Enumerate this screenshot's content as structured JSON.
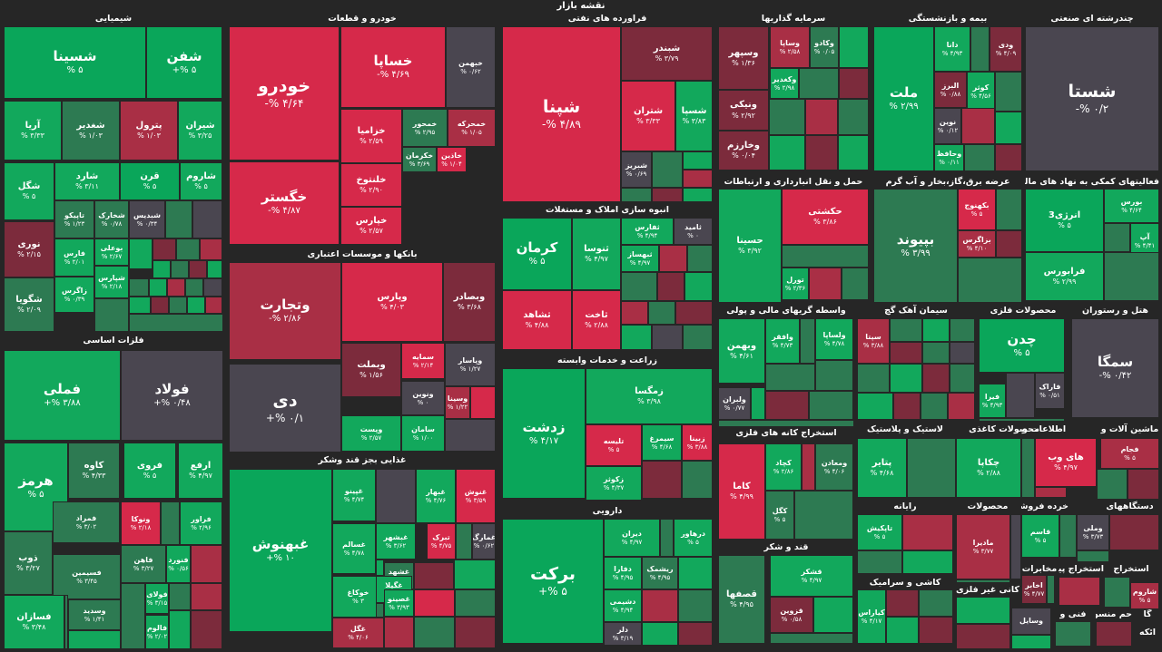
{
  "page_title": "نقشه بازار",
  "sectors": {
    "petrochem": "شیمیایی",
    "auto": "خودرو و قطعات",
    "refinery": "فراورده های نفتی",
    "invest": "سرمایه گذاریها",
    "insurance": "بیمه و بازنشستگی",
    "multi": "چندرشته ای صنعتی",
    "metals": "فلزات اساسی",
    "banks": "بانکها و موسسات اعتباری",
    "construction": "انبوه سازی املاک و مستغلات",
    "transport": "حمل و نقل انبارداری و ارتباطات",
    "utility": "عرضه برق،گاز،بخار و آب گرم",
    "finaux": "فعالیتهای کمکی به نهاد های مالی",
    "agri": "زراعت و خدمات وابسته",
    "fininter": "واسطه گریهای مالی و پولی",
    "cement": "سیمان آهک گچ",
    "mineral": "محصولات فلزی",
    "hotel": "هتل و رستوران",
    "food": "غذایی بجز قند وشکر",
    "ore": "استخراج کانه های فلزی",
    "rubber": "لاستیک و پلاستیک",
    "paper": "محصولات کاغذی",
    "it": "اطلاعات و",
    "machine": "ماشین آلات و",
    "pharma": "دارویی",
    "sugar": "قند و شکر",
    "computer": "رایانه",
    "products": "محصولات",
    "retail": "خرده فروشی",
    "appliance": "دستگاههای",
    "tile": "کاشی و سرامیک",
    "nonmetal": "کانی غیر فلزی",
    "telecom": "مخابرات",
    "contract": "استخراج پیمانکاری",
    "other_mine": "استخراج",
    "tech": "فنی و",
    "mines": "حم منسو",
    "misc1": "ائکه",
    "misc2": "گا"
  },
  "tiles": [
    {
      "s": "شسینا",
      "v": "۵ %"
    },
    {
      "s": "شفن",
      "v": "۵ %+"
    },
    {
      "s": "آریا",
      "v": "۳/۳۳ %"
    },
    {
      "s": "شغدیر",
      "v": "۱/۰۳ %"
    },
    {
      "s": "پترول",
      "v": "۱/۰۳ %"
    },
    {
      "s": "شیران",
      "v": "۳/۲۵ %"
    },
    {
      "s": "شگل",
      "v": "۵ %"
    },
    {
      "s": "شارد",
      "v": "۳/۱۱ %"
    },
    {
      "s": "قرن",
      "v": "۵ %"
    },
    {
      "s": "شاروم",
      "v": "۵ %"
    },
    {
      "s": "تاپیکو",
      "v": "۱/۲۳ %"
    },
    {
      "s": "شخارک",
      "v": "۰/۷۸ %"
    },
    {
      "s": "شبدیس",
      "v": "۰/۳۴ %"
    },
    {
      "s": "نوری",
      "v": "۲/۱۵ %"
    },
    {
      "s": "بوعلی",
      "v": "۲/۶۷ %"
    },
    {
      "s": "فارس",
      "v": "۲/۰۱ %"
    },
    {
      "s": "شپارس",
      "v": "۲/۱۸ %"
    },
    {
      "s": "شگویا",
      "v": "۲/۰۹ %"
    },
    {
      "s": "زاگرس",
      "v": "۰/۳۹ %"
    },
    {
      "s": "خودرو",
      "v": "۴/۶۴ %-"
    },
    {
      "s": "خساپا",
      "v": "۴/۶۹ %-"
    },
    {
      "s": "خبهمن",
      "v": "۰/۶۲ %"
    },
    {
      "s": "خگستر",
      "v": "۴/۸۷ %-"
    },
    {
      "s": "خزامیا",
      "v": "۲/۵۹ %"
    },
    {
      "s": "خمحور",
      "v": "۲/۹۵ %"
    },
    {
      "s": "خمحرکه",
      "v": "۱/۰۵ %"
    },
    {
      "s": "خکرمان",
      "v": "۳/۶۹ %"
    },
    {
      "s": "خاذین",
      "v": "۱/۰۴ %"
    },
    {
      "s": "خلنتوخ",
      "v": "۲/۹۰ %"
    },
    {
      "s": "خپارس",
      "v": "۲/۵۷ %"
    },
    {
      "s": "شپنا",
      "v": "۴/۸۹ %-"
    },
    {
      "s": "شبندر",
      "v": "۳/۷۹ %"
    },
    {
      "s": "شتران",
      "v": "۳/۳۳ %"
    },
    {
      "s": "شسپا",
      "v": "۳/۸۳ %"
    },
    {
      "s": "شبریز",
      "v": "۰/۶۹ %"
    },
    {
      "s": "وسپهر",
      "v": "۱/۳۶ %"
    },
    {
      "s": "وساپا",
      "v": "۲/۵۸ %"
    },
    {
      "s": "وکادو",
      "v": "۰/۰۵ %"
    },
    {
      "s": "وکغدیر",
      "v": "۲/۹۸ %"
    },
    {
      "s": "ونیکی",
      "v": "۲/۹۲ %"
    },
    {
      "s": "وخارزم",
      "v": "۰/۰۴ %"
    },
    {
      "s": "ملت",
      "v": "۲/۹۹ %"
    },
    {
      "s": "دانا",
      "v": "۴/۹۳ %"
    },
    {
      "s": "ودی",
      "v": "۴/۰۹ %"
    },
    {
      "s": "البرز",
      "v": "۰/۸۸ %"
    },
    {
      "s": "کوثر",
      "v": "۴/۵۶ %"
    },
    {
      "s": "نوین",
      "v": "۰/۱۲ %"
    },
    {
      "s": "وحافظ",
      "v": "۰/۱۱ %"
    },
    {
      "s": "شستا",
      "v": "۰/۲ %-"
    },
    {
      "s": "فملی",
      "v": "۳/۸۸ %+"
    },
    {
      "s": "فولاد",
      "v": "۰/۴۸ %+"
    },
    {
      "s": "هرمز",
      "v": "۵ %"
    },
    {
      "s": "کاوه",
      "v": "۴/۳۳ %"
    },
    {
      "s": "فروی",
      "v": "۵ %"
    },
    {
      "s": "ارفع",
      "v": "۴/۹۷ %"
    },
    {
      "s": "فمراد",
      "v": "۳/۰۲ %"
    },
    {
      "s": "ونوکا",
      "v": "۲/۱۸ %"
    },
    {
      "s": "فراور",
      "v": "۲/۹۶ %"
    },
    {
      "s": "ذوب",
      "v": "۳/۲۷ %"
    },
    {
      "s": "فاهن",
      "v": "۳/۲۷ %"
    },
    {
      "s": "فنورد",
      "v": "۰/۵۶ %"
    },
    {
      "s": "فسیمین",
      "v": "۳/۴۵ %"
    },
    {
      "s": "فولای",
      "v": "۳/۱۵ %"
    },
    {
      "s": "فسازان",
      "v": "۳/۴۸ %"
    },
    {
      "s": "وسدید",
      "v": "۱/۴۱ %"
    },
    {
      "s": "فالوم",
      "v": "۲/۰۲ %"
    },
    {
      "s": "وتجارت",
      "v": "۲/۸۶ %-"
    },
    {
      "s": "وپارس",
      "v": "۴/۰۳ %"
    },
    {
      "s": "وبصادر",
      "v": "۳/۶۸ %"
    },
    {
      "s": "دی",
      "v": "۰/۱ %+"
    },
    {
      "s": "وبملت",
      "v": "۱/۵۶ %"
    },
    {
      "s": "سمایه",
      "v": "۲/۱۴ %"
    },
    {
      "s": "وپاسار",
      "v": "۱/۲۷ %"
    },
    {
      "s": "ونوین",
      "v": "۰ %"
    },
    {
      "s": "وسینا",
      "v": "۱/۲۲ %"
    },
    {
      "s": "وپست",
      "v": "۲/۵۷ %"
    },
    {
      "s": "سامان",
      "v": "۱/۰۰ %"
    },
    {
      "s": "کرمان",
      "v": "۵ %"
    },
    {
      "s": "ثنوسا",
      "v": "۴/۹۷ %"
    },
    {
      "s": "ثفارس",
      "v": "۴/۹۴ %"
    },
    {
      "s": "ثامید",
      "v": "۰ %"
    },
    {
      "s": "ثبهساز",
      "v": "۴/۹۷ %"
    },
    {
      "s": "ثشاهد",
      "v": "۴/۸۸ %"
    },
    {
      "s": "ثاخت",
      "v": "۲/۸۸ %"
    },
    {
      "s": "حسینا",
      "v": "۳/۹۲ %"
    },
    {
      "s": "حکشتی",
      "v": "۳/۸۶ %"
    },
    {
      "s": "تورل",
      "v": "۲/۳۶ %"
    },
    {
      "s": "بپیوند",
      "v": "۳/۹۹ %"
    },
    {
      "s": "بکهنوج",
      "v": "۵ %"
    },
    {
      "s": "بزاگرس",
      "v": "۴/۱۰ %"
    },
    {
      "s": "انرژی3",
      "v": "۵ %"
    },
    {
      "s": "بورس",
      "v": "۴/۶۴ %"
    },
    {
      "s": "آپ",
      "v": "۴/۴۱ %"
    },
    {
      "s": "فرابورس",
      "v": "۲/۹۹ %"
    },
    {
      "s": "زدشت",
      "v": "۴/۱۷ %"
    },
    {
      "s": "زمگسا",
      "v": "۳/۹۸ %"
    },
    {
      "s": "تلیسه",
      "v": "۵ %"
    },
    {
      "s": "سیمرغ",
      "v": "۴/۶۸ %"
    },
    {
      "s": "زبینا",
      "v": "۳/۸۸ %"
    },
    {
      "s": "زکوثر",
      "v": "۴/۳۷ %"
    },
    {
      "s": "وبهمن",
      "v": "۴/۶۱ %"
    },
    {
      "s": "وافقر",
      "v": "۴/۷۳ %"
    },
    {
      "s": "ولساپا",
      "v": "۴/۷۸ %"
    },
    {
      "s": "ولبران",
      "v": "۰/۷۷ %"
    },
    {
      "s": "سپتا",
      "v": "۳/۸۸ %"
    },
    {
      "s": "چدن",
      "v": "۵ %"
    },
    {
      "s": "فیرا",
      "v": "۴/۹۳ %"
    },
    {
      "s": "فاراک",
      "v": "۰/۵۱ %"
    },
    {
      "s": "سمگا",
      "v": "۰/۴۲ %-"
    },
    {
      "s": "غبهنوش",
      "v": "۱۰ %+"
    },
    {
      "s": "غپینو",
      "v": "۴/۷۴ %"
    },
    {
      "s": "غبهار",
      "v": "۴/۷۶ %"
    },
    {
      "s": "غنوش",
      "v": "۳/۵۹ %"
    },
    {
      "s": "غسالم",
      "v": "۴/۷۸ %"
    },
    {
      "s": "غبشهر",
      "v": "۳/۶۲ %"
    },
    {
      "s": "تبرک",
      "v": "۴/۷۵ %"
    },
    {
      "s": "غمارگ",
      "v": "۰/۶۲ %"
    },
    {
      "s": "غشهد",
      "v": "۲/۶۲ %"
    },
    {
      "s": "خوکاغ",
      "v": "۳ %"
    },
    {
      "s": "غگیلا",
      "v": "۰/۹۸ %"
    },
    {
      "s": "غصینو",
      "v": "۳/۹۳ %"
    },
    {
      "s": "غگل",
      "v": "۴/۰۶ %"
    },
    {
      "s": "کچاد",
      "v": "۲/۸۶ %"
    },
    {
      "s": "ومعادن",
      "v": "۴/۰۶ %"
    },
    {
      "s": "کاما",
      "v": "۴/۹۹ %"
    },
    {
      "s": "کگل",
      "v": "۵ %"
    },
    {
      "s": "پتایر",
      "v": "۴/۶۸ %"
    },
    {
      "s": "چکاپا",
      "v": "۲/۸۸ %"
    },
    {
      "s": "های وب",
      "v": "۴/۹۷ %"
    },
    {
      "s": "برکت",
      "v": "۵ %+"
    },
    {
      "s": "دیران",
      "v": "۴/۹۷ %"
    },
    {
      "s": "درهاور",
      "v": "۵ %"
    },
    {
      "s": "دفارا",
      "v": "۴/۹۵ %"
    },
    {
      "s": "ریشمک",
      "v": "۴/۹۵ %"
    },
    {
      "s": "دشیمی",
      "v": "۴/۹۴ %"
    },
    {
      "s": "دلر",
      "v": "۳/۱۹ %"
    },
    {
      "s": "قشکر",
      "v": "۴/۹۷ %"
    },
    {
      "s": "قصفها",
      "v": "۴/۹۵ %"
    },
    {
      "s": "قزوین",
      "v": "۰/۵۸ %"
    },
    {
      "s": "تاپکیش",
      "v": "۵ %"
    },
    {
      "s": "مادیرا",
      "v": "۳/۷۷ %"
    },
    {
      "s": "قاسم",
      "v": "۵ %"
    },
    {
      "s": "وملی",
      "v": "۳/۷۳ %"
    },
    {
      "s": "کیاراس",
      "v": "۴/۱۷ %"
    },
    {
      "s": "اخابر",
      "v": "۴/۷۷ %"
    },
    {
      "s": "وسایل",
      "v": ""
    },
    {
      "s": "فجام",
      "v": "۵ %"
    },
    {
      "s": "شاروم",
      "v": "۵ %"
    }
  ]
}
